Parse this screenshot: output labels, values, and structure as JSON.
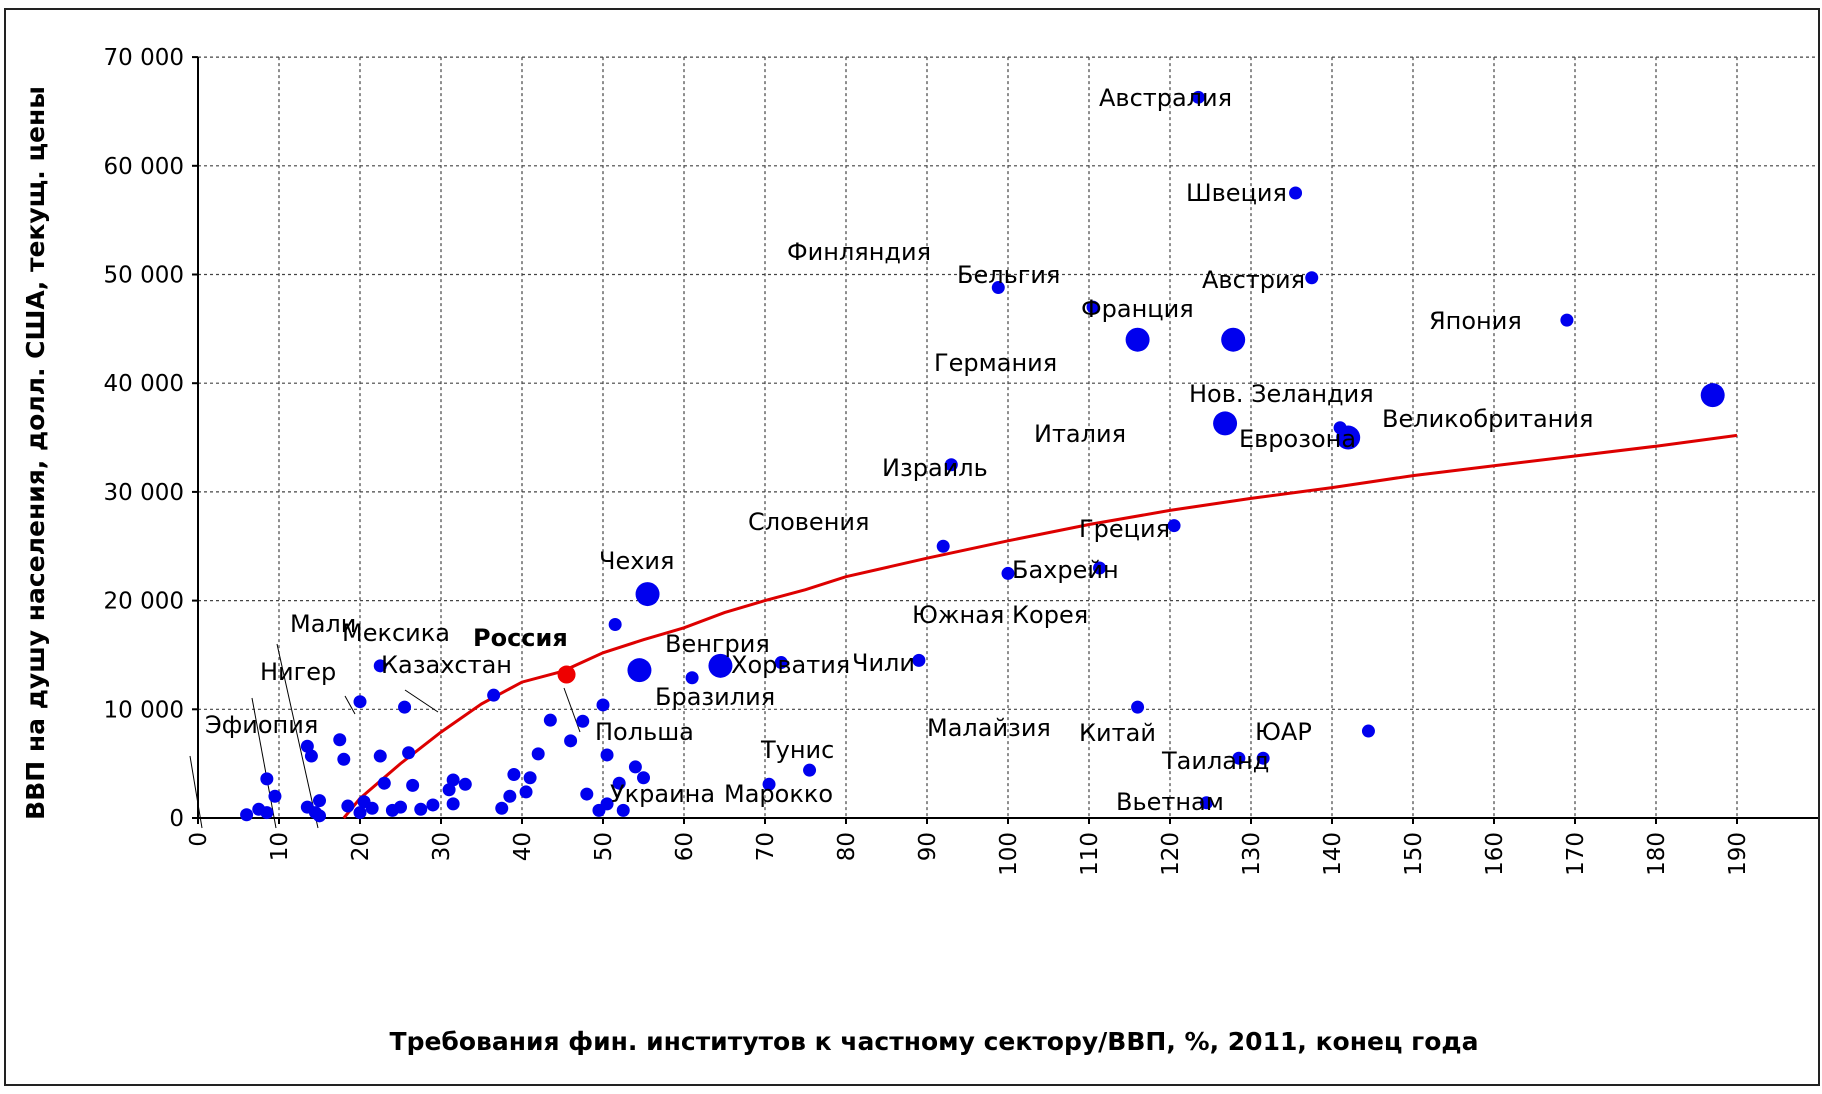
{
  "chart_data": {
    "type": "scatter",
    "xlabel": "Требования фин. институтов к частному сектору/ВВП, %, 2011, конец года",
    "ylabel": "ВВП на душу населения, долл. США, текущ. цены",
    "xlim": [
      0,
      190
    ],
    "ylim": [
      0,
      70000
    ],
    "x_ticks": [
      "0",
      "10",
      "20",
      "30",
      "40",
      "50",
      "60",
      "70",
      "80",
      "90",
      "100",
      "110",
      "120",
      "130",
      "140",
      "150",
      "160",
      "170",
      "180",
      "190"
    ],
    "y_ticks": [
      "0",
      "10 000",
      "20 000",
      "30 000",
      "40 000",
      "50 000",
      "60 000",
      "70 000"
    ],
    "grid": true,
    "colors": {
      "points": "#0000ee",
      "highlight": "#ee0000",
      "trend": "#dd0000",
      "grid": "#444444"
    },
    "labeled_points": [
      {
        "label": "Австралия",
        "x": 123.5,
        "y": 66300,
        "size": "small"
      },
      {
        "label": "Швеция",
        "x": 135.5,
        "y": 57500,
        "size": "small"
      },
      {
        "label": "Финляндия",
        "x": 98.8,
        "y": 48800,
        "size": "small"
      },
      {
        "label": "Бельгия",
        "x": 110.5,
        "y": 47000,
        "size": "small"
      },
      {
        "label": "Австрия",
        "x": 137.5,
        "y": 49700,
        "size": "small"
      },
      {
        "label": "Франция",
        "x": 127.8,
        "y": 44000,
        "size": "large"
      },
      {
        "label": "Германия",
        "x": 116.0,
        "y": 44000,
        "size": "large"
      },
      {
        "label": "Япония",
        "x": 169.0,
        "y": 45800,
        "size": "small"
      },
      {
        "label": "Нов. Зеландия",
        "x": 141.0,
        "y": 35900,
        "size": "small"
      },
      {
        "label": "Великобритания",
        "x": 187.0,
        "y": 38900,
        "size": "large"
      },
      {
        "label": "Италия",
        "x": 126.8,
        "y": 36300,
        "size": "large"
      },
      {
        "label": "Еврозона",
        "x": 142.0,
        "y": 35000,
        "size": "large"
      },
      {
        "label": "Израиль",
        "x": 93.0,
        "y": 32500,
        "size": "small"
      },
      {
        "label": "Словения",
        "x": 92.0,
        "y": 25000,
        "size": "small"
      },
      {
        "label": "Греция",
        "x": 120.5,
        "y": 26900,
        "size": "small"
      },
      {
        "label": "Бахрейн",
        "x": 111.3,
        "y": 23000,
        "size": "small"
      },
      {
        "label": "Южная Корея",
        "x": 100.0,
        "y": 22500,
        "size": "small"
      },
      {
        "label": "Чехия",
        "x": 55.5,
        "y": 20600,
        "size": "large"
      },
      {
        "label": "Россия",
        "x": 45.5,
        "y": 13200,
        "size": "highlight"
      },
      {
        "label": "Венгрия",
        "x": 64.5,
        "y": 14000,
        "size": "large"
      },
      {
        "label": "Хорватия",
        "x": 72.0,
        "y": 14300,
        "size": "small"
      },
      {
        "label": "Чили",
        "x": 89.0,
        "y": 14500,
        "size": "small"
      },
      {
        "label": "Мексика",
        "x": 22.5,
        "y": 14000,
        "size": "small"
      },
      {
        "label": "Мали",
        "x": 20.0,
        "y": 10700,
        "size": "small"
      },
      {
        "label": "Казахстан",
        "x": 36.5,
        "y": 11300,
        "size": "small"
      },
      {
        "label": "Бразилия",
        "x": 61.0,
        "y": 12900,
        "size": "small"
      },
      {
        "label": "Польша",
        "x": 50.0,
        "y": 10400,
        "size": "small"
      },
      {
        "label": "Малайзия",
        "x": 116.0,
        "y": 10200,
        "size": "small"
      },
      {
        "label": "Китай",
        "x": 128.5,
        "y": 5500,
        "size": "small"
      },
      {
        "label": "Таиланд",
        "x": 131.5,
        "y": 5500,
        "size": "small"
      },
      {
        "label": "ЮАР",
        "x": 144.5,
        "y": 8000,
        "size": "small"
      },
      {
        "label": "Тунис",
        "x": 75.5,
        "y": 4400,
        "size": "small"
      },
      {
        "label": "Марокко",
        "x": 70.5,
        "y": 3100,
        "size": "small"
      },
      {
        "label": "Украина",
        "x": 55.0,
        "y": 3700,
        "size": "small"
      },
      {
        "label": "Вьетнам",
        "x": 124.5,
        "y": 1400,
        "size": "small"
      },
      {
        "label": "Нигер",
        "x": 0,
        "y": 0,
        "size": "none"
      },
      {
        "label": "Эфиопия",
        "x": 0,
        "y": 0,
        "size": "none"
      }
    ],
    "unlabeled_points": [
      {
        "x": 51.5,
        "y": 17800,
        "size": "small"
      },
      {
        "x": 54.5,
        "y": 13600,
        "size": "large"
      },
      {
        "x": 25.5,
        "y": 10200,
        "size": "small"
      },
      {
        "x": 43.5,
        "y": 9000,
        "size": "small"
      },
      {
        "x": 47.5,
        "y": 8900,
        "size": "small"
      },
      {
        "x": 46.0,
        "y": 7100,
        "size": "small"
      },
      {
        "x": 13.5,
        "y": 6600,
        "size": "small"
      },
      {
        "x": 14.0,
        "y": 5700,
        "size": "small"
      },
      {
        "x": 17.5,
        "y": 7200,
        "size": "small"
      },
      {
        "x": 18.0,
        "y": 5400,
        "size": "small"
      },
      {
        "x": 22.5,
        "y": 5700,
        "size": "small"
      },
      {
        "x": 26.0,
        "y": 6000,
        "size": "small"
      },
      {
        "x": 42.0,
        "y": 5900,
        "size": "small"
      },
      {
        "x": 50.5,
        "y": 5800,
        "size": "small"
      },
      {
        "x": 54.0,
        "y": 4700,
        "size": "small"
      },
      {
        "x": 39.0,
        "y": 4000,
        "size": "small"
      },
      {
        "x": 41.0,
        "y": 3700,
        "size": "small"
      },
      {
        "x": 8.5,
        "y": 3600,
        "size": "small"
      },
      {
        "x": 23.0,
        "y": 3200,
        "size": "small"
      },
      {
        "x": 26.5,
        "y": 3000,
        "size": "small"
      },
      {
        "x": 31.5,
        "y": 3500,
        "size": "small"
      },
      {
        "x": 33.0,
        "y": 3100,
        "size": "small"
      },
      {
        "x": 31.0,
        "y": 2600,
        "size": "small"
      },
      {
        "x": 38.5,
        "y": 2000,
        "size": "small"
      },
      {
        "x": 40.5,
        "y": 2400,
        "size": "small"
      },
      {
        "x": 48.0,
        "y": 2200,
        "size": "small"
      },
      {
        "x": 52.0,
        "y": 3200,
        "size": "small"
      },
      {
        "x": 9.5,
        "y": 2000,
        "size": "small"
      },
      {
        "x": 15.0,
        "y": 1600,
        "size": "small"
      },
      {
        "x": 18.5,
        "y": 1100,
        "size": "small"
      },
      {
        "x": 20.5,
        "y": 1500,
        "size": "small"
      },
      {
        "x": 21.5,
        "y": 900,
        "size": "small"
      },
      {
        "x": 24.0,
        "y": 700,
        "size": "small"
      },
      {
        "x": 25.0,
        "y": 1000,
        "size": "small"
      },
      {
        "x": 27.5,
        "y": 800,
        "size": "small"
      },
      {
        "x": 29.0,
        "y": 1200,
        "size": "small"
      },
      {
        "x": 31.5,
        "y": 1300,
        "size": "small"
      },
      {
        "x": 37.5,
        "y": 900,
        "size": "small"
      },
      {
        "x": 49.5,
        "y": 700,
        "size": "small"
      },
      {
        "x": 50.5,
        "y": 1300,
        "size": "small"
      },
      {
        "x": 52.5,
        "y": 700,
        "size": "small"
      },
      {
        "x": 6.0,
        "y": 300,
        "size": "small"
      },
      {
        "x": 7.5,
        "y": 800,
        "size": "small"
      },
      {
        "x": 8.5,
        "y": 500,
        "size": "small"
      },
      {
        "x": 13.5,
        "y": 1000,
        "size": "small"
      },
      {
        "x": 14.5,
        "y": 500,
        "size": "small"
      },
      {
        "x": 15.0,
        "y": 200,
        "size": "small"
      },
      {
        "x": 20.0,
        "y": 500,
        "size": "small"
      }
    ],
    "trend_curve": [
      [
        18,
        0
      ],
      [
        20,
        1800
      ],
      [
        25,
        5000
      ],
      [
        30,
        7900
      ],
      [
        35,
        10500
      ],
      [
        40,
        12500
      ],
      [
        45,
        13500
      ],
      [
        50,
        15200
      ],
      [
        55,
        16400
      ],
      [
        60,
        17500
      ],
      [
        65,
        18900
      ],
      [
        70,
        20000
      ],
      [
        75,
        21000
      ],
      [
        80,
        22200
      ],
      [
        90,
        23900
      ],
      [
        100,
        25500
      ],
      [
        110,
        27000
      ],
      [
        120,
        28300
      ],
      [
        130,
        29400
      ],
      [
        140,
        30400
      ],
      [
        150,
        31500
      ],
      [
        160,
        32400
      ],
      [
        170,
        33300
      ],
      [
        180,
        34200
      ],
      [
        190,
        35200
      ]
    ]
  }
}
